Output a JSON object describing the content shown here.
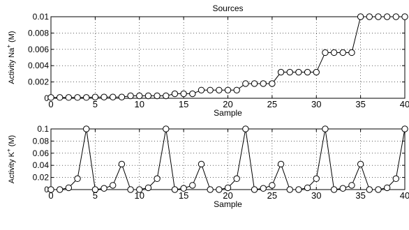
{
  "chart_data": [
    {
      "type": "line",
      "title": "Sources",
      "xlabel": "Sample",
      "ylabel": {
        "prefix": "Activity Na",
        "sup": "+",
        "suffix": " (M)"
      },
      "xlim": [
        0,
        40
      ],
      "ylim": [
        0,
        0.01
      ],
      "grid": true,
      "marker": "circle",
      "xticks": [
        "0",
        "5",
        "10",
        "15",
        "20",
        "25",
        "30",
        "35",
        "40"
      ],
      "yticks": [
        "0",
        "0.002",
        "0.004",
        "0.006",
        "0.008",
        "0.01"
      ],
      "x": [
        0,
        1,
        2,
        3,
        4,
        5,
        6,
        7,
        8,
        9,
        10,
        11,
        12,
        13,
        14,
        15,
        16,
        17,
        18,
        19,
        20,
        21,
        22,
        23,
        24,
        25,
        26,
        27,
        28,
        29,
        30,
        31,
        32,
        33,
        34,
        35,
        36,
        37,
        38,
        39,
        40
      ],
      "values": [
        0.0001,
        0.0001,
        0.0001,
        0.0001,
        0.0001,
        0.00015,
        0.00015,
        0.00015,
        0.00015,
        0.0003,
        0.0003,
        0.0003,
        0.0003,
        0.0003,
        0.00055,
        0.00055,
        0.00055,
        0.001,
        0.001,
        0.001,
        0.001,
        0.001,
        0.0018,
        0.0018,
        0.0018,
        0.0018,
        0.0032,
        0.0032,
        0.0032,
        0.0032,
        0.0032,
        0.0056,
        0.0056,
        0.0056,
        0.0056,
        0.01,
        0.01,
        0.01,
        0.01,
        0.01,
        0.01
      ]
    },
    {
      "type": "line",
      "title": "",
      "xlabel": "Sample",
      "ylabel": {
        "prefix": "Activity K",
        "sup": "+",
        "suffix": " (M)"
      },
      "xlim": [
        0,
        40
      ],
      "ylim": [
        0,
        0.1
      ],
      "grid": true,
      "marker": "circle",
      "xticks": [
        "0",
        "5",
        "10",
        "15",
        "20",
        "25",
        "30",
        "35",
        "40"
      ],
      "yticks": [
        "0",
        "0.02",
        "0.04",
        "0.06",
        "0.08",
        "0.1"
      ],
      "x": [
        0,
        1,
        2,
        3,
        4,
        5,
        6,
        7,
        8,
        9,
        10,
        11,
        12,
        13,
        14,
        15,
        16,
        17,
        18,
        19,
        20,
        21,
        22,
        23,
        24,
        25,
        26,
        27,
        28,
        29,
        30,
        31,
        32,
        33,
        34,
        35,
        36,
        37,
        38,
        39,
        40
      ],
      "values": [
        0,
        0,
        0.003,
        0.018,
        0.1,
        0,
        0.002,
        0.007,
        0.042,
        0,
        0,
        0.003,
        0.018,
        0.1,
        0,
        0.002,
        0.007,
        0.042,
        0,
        0,
        0.003,
        0.018,
        0.1,
        0,
        0.002,
        0.007,
        0.042,
        0,
        0,
        0.003,
        0.018,
        0.1,
        0,
        0.002,
        0.007,
        0.042,
        0,
        0,
        0.003,
        0.018,
        0.1
      ]
    }
  ]
}
